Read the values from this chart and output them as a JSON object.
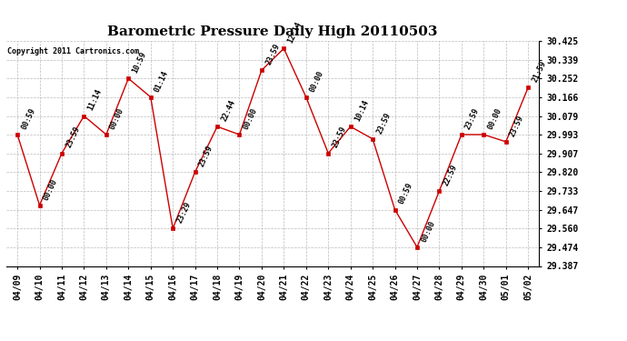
{
  "title": "Barometric Pressure Daily High 20110503",
  "copyright": "Copyright 2011 Cartronics.com",
  "x_labels": [
    "04/09",
    "04/10",
    "04/11",
    "04/12",
    "04/13",
    "04/14",
    "04/15",
    "04/16",
    "04/17",
    "04/18",
    "04/19",
    "04/20",
    "04/21",
    "04/22",
    "04/23",
    "04/24",
    "04/25",
    "04/26",
    "04/27",
    "04/28",
    "04/29",
    "04/30",
    "05/01",
    "05/02"
  ],
  "y_values": [
    29.993,
    29.667,
    29.907,
    30.079,
    29.993,
    30.252,
    30.166,
    29.56,
    29.82,
    30.03,
    29.993,
    30.29,
    30.39,
    30.166,
    29.907,
    30.03,
    29.973,
    29.647,
    29.474,
    29.733,
    29.993,
    29.993,
    29.96,
    30.21
  ],
  "point_labels": [
    "00:59",
    "00:00",
    "23:59",
    "11:14",
    "00:00",
    "10:59",
    "01:14",
    "23:29",
    "23:59",
    "22:44",
    "00:00",
    "23:59",
    "12:14",
    "00:00",
    "23:59",
    "10:14",
    "23:59",
    "00:59",
    "00:00",
    "22:59",
    "23:59",
    "00:00",
    "23:59",
    "21:59"
  ],
  "line_color": "#cc0000",
  "marker_color": "#cc0000",
  "bg_color": "#ffffff",
  "grid_color": "#bbbbbb",
  "ylim_min": 29.387,
  "ylim_max": 30.425,
  "yticks": [
    29.387,
    29.474,
    29.56,
    29.647,
    29.733,
    29.82,
    29.907,
    29.993,
    30.079,
    30.166,
    30.252,
    30.339,
    30.425
  ],
  "title_fontsize": 11,
  "tick_fontsize": 7,
  "annotation_fontsize": 6,
  "copyright_fontsize": 6
}
